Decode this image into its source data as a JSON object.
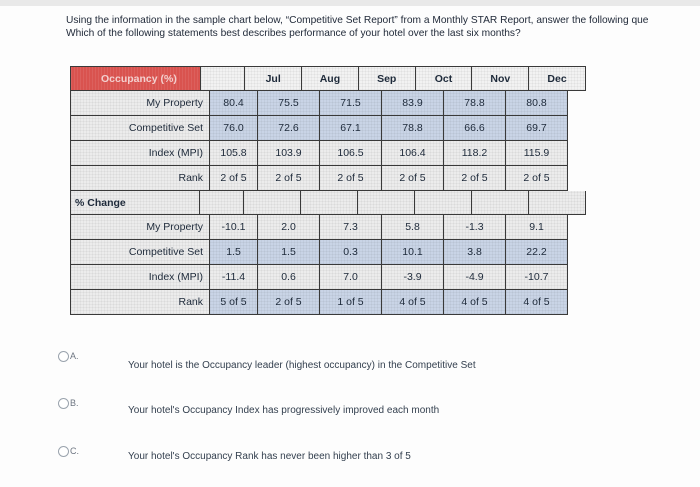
{
  "question": {
    "line1": "Using the information in the sample chart below, “Competitive Set Report” from a Monthly STAR Report, answer the following que",
    "line2": "Which of the following statements best describes performance of your hotel over the last six months?"
  },
  "table": {
    "header_label": "Occupancy (%)",
    "months": [
      "Jul",
      "Aug",
      "Sep",
      "Oct",
      "Nov",
      "Dec"
    ],
    "occupancy_rows": [
      {
        "label": "My Property",
        "values": [
          "80.4",
          "75.5",
          "71.5",
          "83.9",
          "78.8",
          "80.8"
        ]
      },
      {
        "label": "Competitive Set",
        "values": [
          "76.0",
          "72.6",
          "67.1",
          "78.8",
          "66.6",
          "69.7"
        ]
      },
      {
        "label": "Index (MPI)",
        "values": [
          "105.8",
          "103.9",
          "106.5",
          "106.4",
          "118.2",
          "115.9"
        ]
      },
      {
        "label": "Rank",
        "values": [
          "2 of 5",
          "2 of 5",
          "2 of 5",
          "2 of 5",
          "2 of 5",
          "2 of 5"
        ]
      }
    ],
    "pct_change_label": "% Change",
    "change_rows": [
      {
        "label": "My Property",
        "values": [
          "-10.1",
          "2.0",
          "7.3",
          "5.8",
          "-1.3",
          "9.1"
        ]
      },
      {
        "label": "Competitive Set",
        "values": [
          "1.5",
          "1.5",
          "0.3",
          "10.1",
          "3.8",
          "22.2"
        ]
      },
      {
        "label": "Index (MPI)",
        "values": [
          "-11.4",
          "0.6",
          "7.0",
          "-3.9",
          "-4.9",
          "-10.7"
        ]
      },
      {
        "label": "Rank",
        "values": [
          "5 of 5",
          "2 of 5",
          "1 of 5",
          "4 of 5",
          "4 of 5",
          "4 of 5"
        ]
      }
    ]
  },
  "options": [
    {
      "letter": "A.",
      "text": "Your hotel is the Occupancy leader (highest occupancy) in the Competitive Set"
    },
    {
      "letter": "B.",
      "text": "Your hotel's Occupancy Index has progressively improved each month"
    },
    {
      "letter": "C.",
      "text": "Your hotel's Occupancy Rank has never been higher than 3 of 5"
    }
  ]
}
